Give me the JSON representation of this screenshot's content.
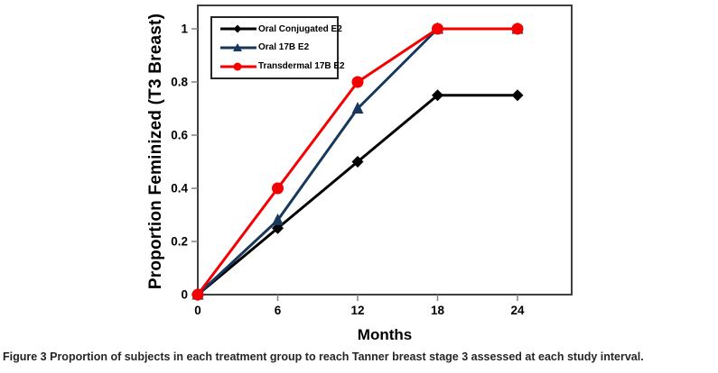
{
  "figure": {
    "caption_label": "Figure 3",
    "caption_text": "Proportion of subjects in each treatment group to reach Tanner breast stage 3 assessed at each study interval."
  },
  "chart_data": {
    "type": "line",
    "title": "",
    "xlabel": "Months",
    "ylabel": "Proportion Feminized (T3 Breast)",
    "x": [
      0,
      6,
      12,
      18,
      24
    ],
    "series": [
      {
        "name": "Oral Conjugated E2",
        "values": [
          0,
          0.25,
          0.5,
          0.75,
          0.75
        ],
        "color": "#000000",
        "marker": "diamond"
      },
      {
        "name": "Oral 17B E2",
        "values": [
          0,
          0.28,
          0.7,
          1,
          1
        ],
        "color": "#17375d",
        "marker": "triangle"
      },
      {
        "name": "Transdermal 17B E2",
        "values": [
          0,
          0.4,
          0.8,
          1,
          1
        ],
        "color": "#f40000",
        "marker": "circle"
      }
    ],
    "xlim": [
      0,
      28
    ],
    "ylim": [
      0,
      1.09
    ],
    "xticks": [
      0,
      6,
      12,
      18,
      24
    ],
    "xtick_labels": [
      "0",
      "6",
      "12",
      "18",
      "24"
    ],
    "yticks": [
      0,
      0.2,
      0.4,
      0.6,
      0.8,
      1
    ],
    "ytick_labels": [
      "0",
      "0.2",
      "0.4",
      "0.6",
      "0.8",
      "1"
    ],
    "grid": false,
    "legend_position": "top-left-inside",
    "frame_color": "#3f3f3f",
    "tick_color": "#808080"
  }
}
